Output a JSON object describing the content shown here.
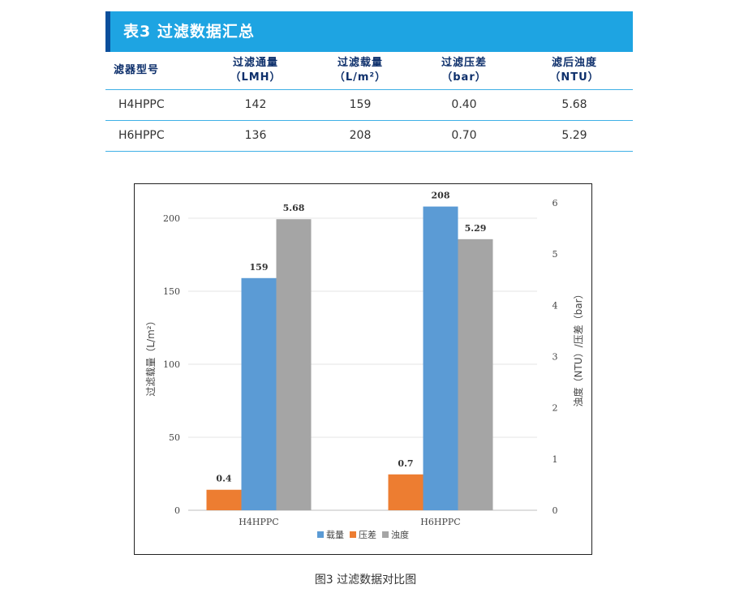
{
  "table": {
    "title": "表3  过滤数据汇总",
    "headers": [
      {
        "line1": "滤器型号",
        "line2": ""
      },
      {
        "line1": "过滤通量",
        "line2": "（LMH）"
      },
      {
        "line1": "过滤载量",
        "line2": "（L/m²）"
      },
      {
        "line1": "过滤压差",
        "line2": "（bar）"
      },
      {
        "line1": "滤后浊度",
        "line2": "（NTU）"
      }
    ],
    "rows": [
      [
        "H4HPPC",
        "142",
        "159",
        "0.40",
        "5.68"
      ],
      [
        "H6HPPC",
        "136",
        "208",
        "0.70",
        "5.29"
      ]
    ]
  },
  "chart_data": {
    "type": "bar",
    "categories": [
      "H4HPPC",
      "H6HPPC"
    ],
    "series": [
      {
        "name": "压差",
        "axis": "right",
        "values": [
          0.4,
          0.7
        ],
        "labels": [
          "0.4",
          "0.7"
        ],
        "color": "#ed7d31"
      },
      {
        "name": "载量",
        "axis": "left",
        "values": [
          159,
          208
        ],
        "labels": [
          "159",
          "208"
        ],
        "color": "#5b9bd5"
      },
      {
        "name": "浊度",
        "axis": "right",
        "values": [
          5.68,
          5.29
        ],
        "labels": [
          "5.68",
          "5.29"
        ],
        "color": "#a5a5a5"
      }
    ],
    "legend_order": [
      "载量",
      "压差",
      "浊度"
    ],
    "ylabel_left": "过滤载量（L/m²）",
    "ylabel_right": "浊度（NTU）/压差（bar）",
    "ylim_left": [
      0,
      200
    ],
    "yticks_left": [
      0,
      50,
      100,
      150,
      200
    ],
    "ylim_right": [
      0,
      6
    ],
    "yticks_right": [
      0,
      1,
      2,
      3,
      4,
      5,
      6
    ],
    "grid": true,
    "legend_position": "bottom"
  },
  "caption": "图3  过滤数据对比图"
}
